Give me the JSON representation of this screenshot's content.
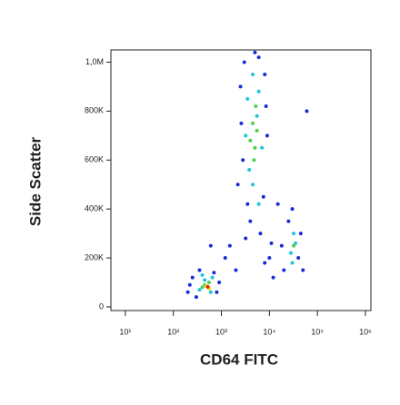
{
  "chart_data": {
    "type": "scatter",
    "xlabel": "CD64 FITC",
    "ylabel": "Side Scatter",
    "xscale": "log",
    "xlim": [
      5,
      1300000
    ],
    "ylim": [
      -15000,
      1050000
    ],
    "xticks": [
      {
        "value": 10,
        "label": "10¹"
      },
      {
        "value": 100,
        "label": "10²"
      },
      {
        "value": 1000,
        "label": "10³"
      },
      {
        "value": 10000,
        "label": "10⁴"
      },
      {
        "value": 100000,
        "label": "10⁵"
      },
      {
        "value": 1000000,
        "label": "10⁶"
      }
    ],
    "yticks": [
      0,
      {
        "value": 200000,
        "label": "200K"
      },
      {
        "value": 400000,
        "label": "400K"
      },
      {
        "value": 600000,
        "label": "600K"
      },
      {
        "value": 800000,
        "label": "800K"
      },
      {
        "value": 1000000,
        "label": "1,0M"
      }
    ],
    "series": [
      {
        "color": "#1a2cd6",
        "x": [
          200,
          250,
          300,
          700,
          800,
          350,
          900,
          220,
          2500,
          3000,
          6000,
          8000,
          2800,
          2200,
          7500,
          9000,
          4000,
          3500,
          6500,
          2600,
          8500,
          5000,
          3200,
          20000,
          25000,
          40000,
          45000,
          30000,
          18000,
          1500,
          2000,
          10000,
          12000,
          600,
          15000,
          60000,
          50000,
          1200,
          8000,
          11000
        ],
        "y": [
          60000,
          120000,
          40000,
          140000,
          60000,
          150000,
          100000,
          90000,
          900000,
          1000000,
          1020000,
          950000,
          600000,
          500000,
          450000,
          700000,
          350000,
          420000,
          300000,
          750000,
          820000,
          1040000,
          280000,
          150000,
          350000,
          200000,
          300000,
          400000,
          250000,
          250000,
          150000,
          200000,
          120000,
          250000,
          420000,
          800000,
          150000,
          200000,
          180000,
          260000
        ]
      },
      {
        "color": "#22c3e0",
        "x": [
          350,
          450,
          600,
          400,
          650,
          3500,
          4500,
          6000,
          3200,
          7000,
          4500,
          6000,
          3800,
          5500,
          28000,
          32000,
          35000,
          30000
        ],
        "y": [
          70000,
          110000,
          60000,
          130000,
          120000,
          850000,
          950000,
          880000,
          700000,
          650000,
          500000,
          420000,
          560000,
          780000,
          220000,
          300000,
          260000,
          180000
        ]
      },
      {
        "color": "#4cd04c",
        "x": [
          450,
          550,
          400,
          4500,
          5000,
          4000,
          5500,
          4800,
          5200,
          32000
        ],
        "y": [
          90000,
          100000,
          80000,
          750000,
          650000,
          680000,
          720000,
          600000,
          820000,
          250000
        ]
      },
      {
        "color": "#f0e020",
        "x": [
          480,
          560
        ],
        "y": [
          85000,
          75000
        ]
      },
      {
        "color": "#e02010",
        "x": [
          520
        ],
        "y": [
          82000
        ]
      }
    ]
  }
}
